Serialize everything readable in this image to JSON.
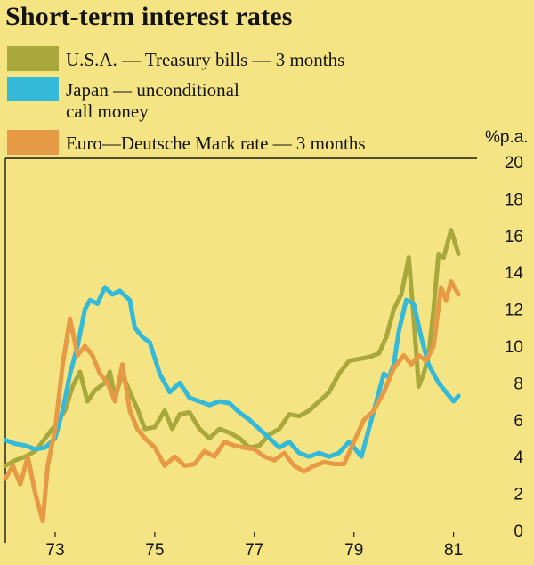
{
  "title": "Short-term interest rates",
  "colors": {
    "background": "#f4e483",
    "usa": "#a9a83c",
    "japan": "#35b9d8",
    "euro": "#e79a45"
  },
  "legend": [
    {
      "key": "usa",
      "line1": "U.S.A. — Treasury bills — 3 months",
      "line2": ""
    },
    {
      "key": "japan",
      "line1": "Japan — unconditional",
      "line2": "call money"
    },
    {
      "key": "euro",
      "line1": "Euro—Deutsche Mark rate — 3 months",
      "line2": ""
    }
  ],
  "chart_data": {
    "type": "line",
    "title": "Short-term interest rates",
    "ylabel": "%p.a.",
    "ylim": [
      0,
      20
    ],
    "yticks": [
      0,
      2,
      4,
      6,
      8,
      10,
      12,
      14,
      16,
      18,
      20
    ],
    "xlim": [
      1972,
      1981.4
    ],
    "xticks": [
      {
        "value": 1973,
        "label": "73"
      },
      {
        "value": 1975,
        "label": "75"
      },
      {
        "value": 1977,
        "label": "77"
      },
      {
        "value": 1979,
        "label": "79"
      },
      {
        "value": 1981,
        "label": "81"
      }
    ],
    "series": [
      {
        "name": "U.S.A. — Treasury bills — 3 months",
        "key": "usa",
        "x": [
          1972.0,
          1972.2,
          1972.4,
          1972.6,
          1972.8,
          1973.0,
          1973.2,
          1973.35,
          1973.5,
          1973.65,
          1973.8,
          1974.0,
          1974.1,
          1974.2,
          1974.35,
          1974.5,
          1974.65,
          1974.8,
          1975.0,
          1975.2,
          1975.35,
          1975.5,
          1975.7,
          1975.9,
          1976.1,
          1976.3,
          1976.5,
          1976.7,
          1976.9,
          1977.1,
          1977.3,
          1977.5,
          1977.7,
          1977.9,
          1978.1,
          1978.3,
          1978.5,
          1978.7,
          1978.9,
          1979.1,
          1979.3,
          1979.5,
          1979.65,
          1979.8,
          1979.95,
          1980.1,
          1980.2,
          1980.3,
          1980.4,
          1980.5,
          1980.6,
          1980.7,
          1980.8,
          1980.95,
          1981.1
        ],
        "y": [
          3.5,
          3.8,
          4.0,
          4.3,
          5.0,
          5.7,
          6.5,
          7.8,
          8.6,
          7.0,
          7.6,
          8.0,
          8.6,
          7.2,
          8.5,
          7.5,
          6.6,
          5.5,
          5.6,
          6.5,
          5.5,
          6.3,
          6.4,
          5.5,
          5.0,
          5.5,
          5.3,
          5.0,
          4.5,
          4.6,
          5.2,
          5.5,
          6.3,
          6.2,
          6.5,
          7.0,
          7.5,
          8.5,
          9.2,
          9.3,
          9.4,
          9.6,
          10.5,
          12.0,
          12.8,
          14.8,
          11.5,
          7.8,
          8.5,
          9.5,
          12.0,
          15.0,
          14.8,
          16.3,
          15.0
        ]
      },
      {
        "name": "Japan — unconditional call money",
        "key": "japan",
        "x": [
          1972.0,
          1972.2,
          1972.4,
          1972.6,
          1972.8,
          1973.0,
          1973.15,
          1973.3,
          1973.45,
          1973.6,
          1973.7,
          1973.85,
          1974.0,
          1974.15,
          1974.3,
          1974.5,
          1974.6,
          1974.75,
          1974.9,
          1975.1,
          1975.3,
          1975.5,
          1975.7,
          1975.9,
          1976.1,
          1976.3,
          1976.5,
          1976.7,
          1976.9,
          1977.1,
          1977.3,
          1977.5,
          1977.7,
          1977.9,
          1978.1,
          1978.3,
          1978.5,
          1978.7,
          1978.9,
          1979.0,
          1979.15,
          1979.3,
          1979.45,
          1979.6,
          1979.7,
          1979.8,
          1979.9,
          1980.05,
          1980.2,
          1980.35,
          1980.5,
          1980.7,
          1980.85,
          1981.0,
          1981.1
        ],
        "y": [
          4.9,
          4.7,
          4.6,
          4.4,
          4.5,
          5.0,
          6.5,
          8.5,
          10.0,
          12.0,
          12.5,
          12.3,
          13.2,
          12.8,
          13.0,
          12.5,
          11.0,
          10.5,
          10.2,
          8.5,
          7.5,
          8.0,
          7.2,
          7.0,
          6.8,
          7.0,
          6.9,
          6.4,
          6.0,
          5.5,
          5.0,
          4.5,
          4.8,
          4.2,
          4.0,
          4.2,
          4.0,
          4.2,
          4.8,
          4.5,
          4.0,
          5.5,
          7.0,
          8.5,
          8.3,
          9.0,
          10.8,
          12.5,
          12.3,
          10.5,
          9.0,
          8.0,
          7.5,
          7.0,
          7.3
        ]
      },
      {
        "name": "Euro—Deutsche Mark rate — 3 months",
        "key": "euro",
        "x": [
          1972.0,
          1972.15,
          1972.3,
          1972.45,
          1972.6,
          1972.75,
          1972.85,
          1973.0,
          1973.15,
          1973.3,
          1973.45,
          1973.6,
          1973.75,
          1973.9,
          1974.05,
          1974.2,
          1974.35,
          1974.5,
          1974.65,
          1974.8,
          1975.0,
          1975.2,
          1975.4,
          1975.6,
          1975.8,
          1976.0,
          1976.2,
          1976.4,
          1976.6,
          1976.8,
          1977.0,
          1977.2,
          1977.4,
          1977.6,
          1977.8,
          1978.0,
          1978.2,
          1978.4,
          1978.6,
          1978.8,
          1979.0,
          1979.2,
          1979.4,
          1979.6,
          1979.8,
          1980.0,
          1980.15,
          1980.3,
          1980.45,
          1980.6,
          1980.75,
          1980.85,
          1980.95,
          1981.1
        ],
        "y": [
          2.8,
          3.5,
          2.5,
          4.0,
          2.0,
          0.5,
          3.5,
          5.5,
          9.0,
          11.5,
          9.5,
          10.0,
          9.5,
          8.5,
          8.0,
          7.0,
          9.0,
          6.5,
          5.5,
          5.0,
          4.5,
          3.5,
          4.0,
          3.5,
          3.6,
          4.3,
          4.0,
          4.8,
          4.6,
          4.5,
          4.4,
          4.0,
          3.8,
          4.2,
          3.5,
          3.2,
          3.5,
          3.7,
          3.6,
          3.6,
          4.8,
          6.0,
          6.5,
          7.5,
          8.8,
          9.5,
          9.0,
          9.5,
          9.2,
          10.0,
          13.2,
          12.5,
          13.5,
          12.8
        ]
      }
    ]
  }
}
